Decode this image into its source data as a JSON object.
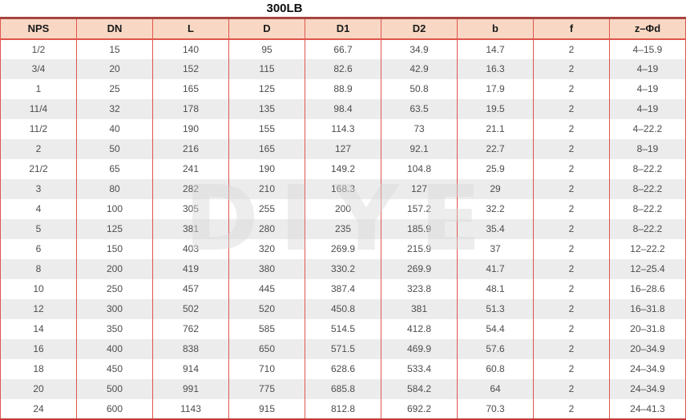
{
  "title": "300LB",
  "watermark": "DIYE",
  "colors": {
    "grid_red_thin": "#e0554e",
    "grid_red_thick_top": "#a84341",
    "grid_red_thick_bottom": "#c43a34",
    "header_background": "#f8d8c4",
    "alternate_row": "#ececec",
    "header_text": "#1a1a1a",
    "cell_text": "#4d4d4d",
    "watermark_gray": "#d9d9d9"
  },
  "table": {
    "columns": [
      "NPS",
      "DN",
      "L",
      "D",
      "D1",
      "D2",
      "b",
      "f",
      "z–Φd"
    ],
    "rows": [
      [
        "1/2",
        "15",
        "140",
        "95",
        "66.7",
        "34.9",
        "14.7",
        "2",
        "4–15.9"
      ],
      [
        "3/4",
        "20",
        "152",
        "115",
        "82.6",
        "42.9",
        "16.3",
        "2",
        "4–19"
      ],
      [
        "1",
        "25",
        "165",
        "125",
        "88.9",
        "50.8",
        "17.9",
        "2",
        "4–19"
      ],
      [
        "11/4",
        "32",
        "178",
        "135",
        "98.4",
        "63.5",
        "19.5",
        "2",
        "4–19"
      ],
      [
        "11/2",
        "40",
        "190",
        "155",
        "114.3",
        "73",
        "21.1",
        "2",
        "4–22.2"
      ],
      [
        "2",
        "50",
        "216",
        "165",
        "127",
        "92.1",
        "22.7",
        "2",
        "8–19"
      ],
      [
        "21/2",
        "65",
        "241",
        "190",
        "149.2",
        "104.8",
        "25.9",
        "2",
        "8–22.2"
      ],
      [
        "3",
        "80",
        "282",
        "210",
        "168.3",
        "127",
        "29",
        "2",
        "8–22.2"
      ],
      [
        "4",
        "100",
        "305",
        "255",
        "200",
        "157.2",
        "32.2",
        "2",
        "8–22.2"
      ],
      [
        "5",
        "125",
        "381",
        "280",
        "235",
        "185.9",
        "35.4",
        "2",
        "8–22.2"
      ],
      [
        "6",
        "150",
        "403",
        "320",
        "269.9",
        "215.9",
        "37",
        "2",
        "12–22.2"
      ],
      [
        "8",
        "200",
        "419",
        "380",
        "330.2",
        "269.9",
        "41.7",
        "2",
        "12–25.4"
      ],
      [
        "10",
        "250",
        "457",
        "445",
        "387.4",
        "323.8",
        "48.1",
        "2",
        "16–28.6"
      ],
      [
        "12",
        "300",
        "502",
        "520",
        "450.8",
        "381",
        "51.3",
        "2",
        "16–31.8"
      ],
      [
        "14",
        "350",
        "762",
        "585",
        "514.5",
        "412.8",
        "54.4",
        "2",
        "20–31.8"
      ],
      [
        "16",
        "400",
        "838",
        "650",
        "571.5",
        "469.9",
        "57.6",
        "2",
        "20–34.9"
      ],
      [
        "18",
        "450",
        "914",
        "710",
        "628.6",
        "533.4",
        "60.8",
        "2",
        "24–34.9"
      ],
      [
        "20",
        "500",
        "991",
        "775",
        "685.8",
        "584.2",
        "64",
        "2",
        "24–34.9"
      ],
      [
        "24",
        "600",
        "1143",
        "915",
        "812.8",
        "692.2",
        "70.3",
        "2",
        "24–41.3"
      ]
    ]
  }
}
